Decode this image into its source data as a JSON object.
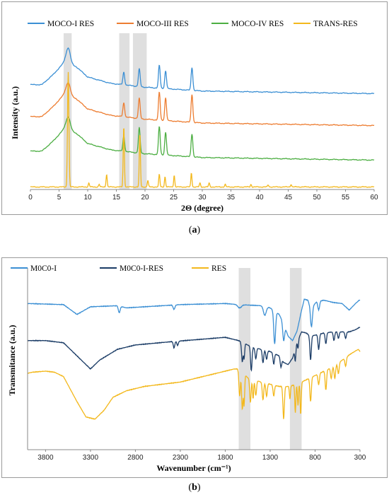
{
  "chart_data": [
    {
      "type": "line",
      "panel": "a",
      "xlabel": "2Θ (degree)",
      "ylabel": "Intensity (a.u.)",
      "xlim": [
        0,
        60
      ],
      "xticks": [
        0,
        5,
        10,
        15,
        20,
        25,
        30,
        35,
        40,
        45,
        50,
        55,
        60
      ],
      "legend_position": "top",
      "grid": false,
      "highlight_bands": [
        [
          5.8,
          7.2
        ],
        [
          15.5,
          17.3
        ],
        [
          17.9,
          20.3
        ]
      ],
      "series": [
        {
          "name": "MOCO-I RES",
          "color": "#3b8fd4",
          "offset": 72,
          "baseline": [
            [
              2,
              8
            ],
            [
              4,
              16
            ],
            [
              6,
              26
            ],
            [
              8,
              22
            ],
            [
              10,
              14
            ],
            [
              14,
              9
            ],
            [
              20,
              6
            ],
            [
              30,
              3
            ],
            [
              45,
              2
            ],
            [
              60,
              1
            ]
          ],
          "peaks": [
            [
              6.6,
              12,
              0.35
            ],
            [
              16.3,
              10,
              0.15
            ],
            [
              19.0,
              14,
              0.15
            ],
            [
              22.5,
              18,
              0.15
            ],
            [
              23.6,
              14,
              0.15
            ],
            [
              28.2,
              18,
              0.15
            ]
          ]
        },
        {
          "name": "MOCO-III RES",
          "color": "#ed7d31",
          "offset": 47,
          "baseline": [
            [
              2,
              8
            ],
            [
              4,
              16
            ],
            [
              6,
              26
            ],
            [
              8,
              22
            ],
            [
              10,
              14
            ],
            [
              14,
              9
            ],
            [
              20,
              6
            ],
            [
              30,
              3
            ],
            [
              45,
              2
            ],
            [
              60,
              1
            ]
          ],
          "peaks": [
            [
              6.6,
              10,
              0.35
            ],
            [
              16.3,
              11,
              0.15
            ],
            [
              19.0,
              16,
              0.15
            ],
            [
              22.5,
              22,
              0.15
            ],
            [
              23.6,
              18,
              0.15
            ],
            [
              28.2,
              22,
              0.15
            ]
          ]
        },
        {
          "name": "MOCO-IV  RES",
          "color": "#4cae42",
          "offset": 20,
          "baseline": [
            [
              2,
              8
            ],
            [
              4,
              16
            ],
            [
              6,
              26
            ],
            [
              8,
              22
            ],
            [
              10,
              14
            ],
            [
              14,
              9
            ],
            [
              20,
              6
            ],
            [
              30,
              3
            ],
            [
              45,
              2
            ],
            [
              60,
              1
            ]
          ],
          "peaks": [
            [
              6.6,
              10,
              0.35
            ],
            [
              16.3,
              12,
              0.15
            ],
            [
              19.0,
              20,
              0.15
            ],
            [
              22.5,
              22,
              0.15
            ],
            [
              23.6,
              18,
              0.15
            ],
            [
              28.2,
              18,
              0.15
            ]
          ]
        },
        {
          "name": "TRANS-RES",
          "color": "#f3b81c",
          "offset": 0,
          "baseline": [
            [
              2,
              0
            ],
            [
              60,
              0
            ]
          ],
          "peaks": [
            [
              6.6,
              90,
              0.12
            ],
            [
              10.2,
              3,
              0.1
            ],
            [
              12.0,
              2,
              0.1
            ],
            [
              13.3,
              10,
              0.1
            ],
            [
              16.3,
              48,
              0.1
            ],
            [
              19.1,
              42,
              0.1
            ],
            [
              20.5,
              5,
              0.1
            ],
            [
              22.5,
              10,
              0.1
            ],
            [
              23.5,
              8,
              0.1
            ],
            [
              25.1,
              9,
              0.1
            ],
            [
              28.1,
              11,
              0.1
            ],
            [
              29.6,
              3,
              0.1
            ],
            [
              31.2,
              3,
              0.1
            ],
            [
              34.0,
              2,
              0.1
            ],
            [
              38.5,
              2,
              0.1
            ],
            [
              41.5,
              1.5,
              0.1
            ],
            [
              45.5,
              2,
              0.1
            ]
          ]
        }
      ]
    },
    {
      "type": "line",
      "panel": "b",
      "xlabel": "Wavenumber (cm⁻¹)",
      "ylabel": "Transmitance (a.u.)",
      "xlim": [
        4000,
        300
      ],
      "xticks": [
        3800,
        3300,
        2800,
        2300,
        1800,
        1300,
        800,
        300
      ],
      "legend_position": "top",
      "grid": false,
      "highlight_bands": [
        [
          1650,
          1520
        ],
        [
          1080,
          950
        ]
      ],
      "series": [
        {
          "name": "M0C0-I",
          "color": "#3b8fd4",
          "offset": 60,
          "baseline": [
            [
              4000,
              100
            ],
            [
              3600,
              99
            ],
            [
              3450,
              90
            ],
            [
              3300,
              97
            ],
            [
              3000,
              98
            ],
            [
              2900,
              96
            ],
            [
              2300,
              99
            ],
            [
              1800,
              100
            ],
            [
              1650,
              99
            ],
            [
              1400,
              98
            ],
            [
              1300,
              96
            ],
            [
              1200,
              90
            ],
            [
              1150,
              82
            ],
            [
              1100,
              70
            ],
            [
              1050,
              66
            ],
            [
              1000,
              75
            ],
            [
              950,
              94
            ],
            [
              920,
              104
            ],
            [
              880,
              103
            ],
            [
              850,
              96
            ],
            [
              820,
              98
            ],
            [
              780,
              102
            ],
            [
              700,
              103
            ],
            [
              600,
              101
            ],
            [
              500,
              100
            ],
            [
              420,
              94
            ],
            [
              350,
              100
            ],
            [
              310,
              103
            ]
          ],
          "peaks": [
            [
              2980,
              6,
              10
            ],
            [
              2370,
              4,
              10
            ],
            [
              1640,
              3,
              20
            ],
            [
              1360,
              8,
              15
            ],
            [
              1250,
              30,
              10
            ],
            [
              1150,
              16,
              10
            ],
            [
              840,
              18,
              10
            ],
            [
              760,
              8,
              10
            ]
          ]
        },
        {
          "name": "M0C0-I-RES",
          "color": "#1b3c66",
          "offset": 30,
          "baseline": [
            [
              4000,
              96
            ],
            [
              3800,
              96
            ],
            [
              3600,
              94
            ],
            [
              3450,
              82
            ],
            [
              3300,
              70
            ],
            [
              3200,
              78
            ],
            [
              3000,
              88
            ],
            [
              2800,
              92
            ],
            [
              2400,
              95
            ],
            [
              1800,
              99
            ],
            [
              1650,
              96
            ],
            [
              1500,
              90
            ],
            [
              1400,
              88
            ],
            [
              1300,
              86
            ],
            [
              1200,
              82
            ],
            [
              1150,
              76
            ],
            [
              1100,
              74
            ],
            [
              1050,
              80
            ],
            [
              1000,
              95
            ],
            [
              950,
              104
            ],
            [
              900,
              103
            ],
            [
              850,
              100
            ],
            [
              700,
              103
            ],
            [
              600,
              104
            ],
            [
              500,
              104
            ],
            [
              420,
              104
            ],
            [
              350,
              106
            ],
            [
              310,
              108
            ]
          ],
          "peaks": [
            [
              2370,
              6,
              8
            ],
            [
              2330,
              4,
              8
            ],
            [
              1610,
              18,
              8
            ],
            [
              1590,
              14,
              6
            ],
            [
              1510,
              22,
              8
            ],
            [
              1460,
              10,
              8
            ],
            [
              1380,
              12,
              8
            ],
            [
              1340,
              8,
              8
            ],
            [
              1260,
              10,
              8
            ],
            [
              1180,
              8,
              8
            ],
            [
              1020,
              12,
              6
            ],
            [
              990,
              8,
              6
            ],
            [
              850,
              22,
              8
            ],
            [
              760,
              14,
              8
            ],
            [
              680,
              10,
              8
            ],
            [
              590,
              8,
              8
            ],
            [
              540,
              6,
              8
            ],
            [
              460,
              6,
              8
            ]
          ]
        },
        {
          "name": "RES",
          "color": "#f3b81c",
          "offset": 0,
          "baseline": [
            [
              4000,
              96
            ],
            [
              3950,
              97
            ],
            [
              3800,
              98
            ],
            [
              3700,
              97
            ],
            [
              3600,
              93
            ],
            [
              3450,
              70
            ],
            [
              3350,
              56
            ],
            [
              3250,
              54
            ],
            [
              3150,
              62
            ],
            [
              3050,
              74
            ],
            [
              2900,
              80
            ],
            [
              2700,
              84
            ],
            [
              2500,
              86
            ],
            [
              2300,
              88
            ],
            [
              2100,
              92
            ],
            [
              1900,
              96
            ],
            [
              1700,
              100
            ],
            [
              1650,
              100
            ],
            [
              1550,
              92
            ],
            [
              1400,
              88
            ],
            [
              1300,
              86
            ],
            [
              1200,
              84
            ],
            [
              1100,
              84
            ],
            [
              1000,
              86
            ],
            [
              900,
              90
            ],
            [
              800,
              94
            ],
            [
              700,
              98
            ],
            [
              600,
              102
            ],
            [
              500,
              108
            ],
            [
              400,
              114
            ],
            [
              320,
              118
            ],
            [
              300,
              116
            ]
          ],
          "peaks": [
            [
              1640,
              24,
              8
            ],
            [
              1610,
              34,
              8
            ],
            [
              1590,
              28,
              6
            ],
            [
              1520,
              22,
              8
            ],
            [
              1490,
              18,
              6
            ],
            [
              1460,
              14,
              8
            ],
            [
              1380,
              16,
              8
            ],
            [
              1340,
              12,
              8
            ],
            [
              1260,
              10,
              8
            ],
            [
              1150,
              30,
              8
            ],
            [
              1080,
              12,
              6
            ],
            [
              1020,
              26,
              6
            ],
            [
              990,
              20,
              6
            ],
            [
              960,
              30,
              6
            ],
            [
              850,
              22,
              8
            ],
            [
              760,
              10,
              8
            ],
            [
              680,
              18,
              8
            ],
            [
              620,
              10,
              8
            ],
            [
              580,
              12,
              8
            ],
            [
              540,
              10,
              8
            ],
            [
              460,
              8,
              8
            ]
          ]
        }
      ]
    }
  ],
  "captions": {
    "a": "a",
    "b": "b"
  }
}
